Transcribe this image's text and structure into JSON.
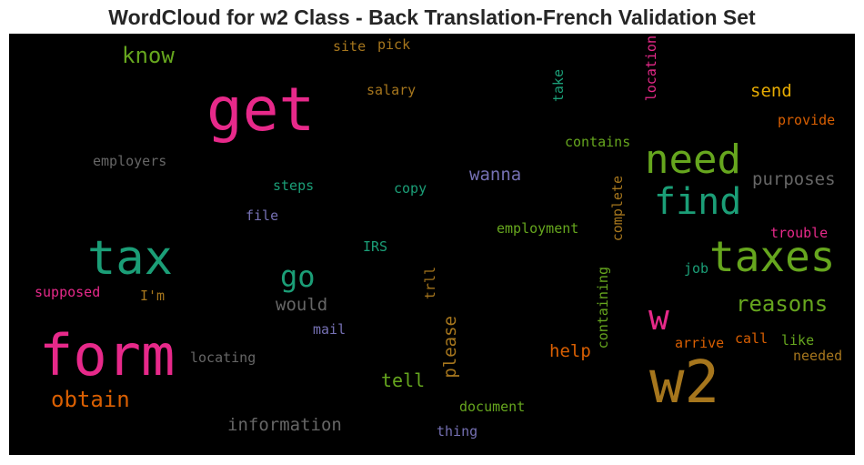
{
  "title": "WordCloud for w2 Class - Back Translation-French Validation Set",
  "words": [
    {
      "text": "get",
      "color": "#e7298a"
    },
    {
      "text": "form",
      "color": "#e7298a"
    },
    {
      "text": "w2",
      "color": "#a6761d"
    },
    {
      "text": "tax",
      "color": "#1b9e77"
    },
    {
      "text": "taxes",
      "color": "#66a61e"
    },
    {
      "text": "need",
      "color": "#66a61e"
    },
    {
      "text": "find",
      "color": "#1b9e77"
    },
    {
      "text": "w",
      "color": "#e7298a"
    },
    {
      "text": "go",
      "color": "#1b9e77"
    },
    {
      "text": "reasons",
      "color": "#66a61e"
    },
    {
      "text": "obtain",
      "color": "#d95f02"
    },
    {
      "text": "know",
      "color": "#66a61e"
    },
    {
      "text": "information",
      "color": "#666666"
    },
    {
      "text": "purposes",
      "color": "#666666"
    },
    {
      "text": "would",
      "color": "#666666"
    },
    {
      "text": "send",
      "color": "#e6ab02"
    },
    {
      "text": "tell",
      "color": "#66a61e"
    },
    {
      "text": "help",
      "color": "#d95f02"
    },
    {
      "text": "wanna",
      "color": "#7570b3"
    },
    {
      "text": "please",
      "color": "#a6761d"
    },
    {
      "text": "salary",
      "color": "#a6761d"
    },
    {
      "text": "contains",
      "color": "#66a61e"
    },
    {
      "text": "employers",
      "color": "#666666"
    },
    {
      "text": "locating",
      "color": "#666666"
    },
    {
      "text": "provide",
      "color": "#d95f02"
    },
    {
      "text": "employment",
      "color": "#66a61e"
    },
    {
      "text": "document",
      "color": "#66a61e"
    },
    {
      "text": "supposed",
      "color": "#e7298a"
    },
    {
      "text": "steps",
      "color": "#1b9e77"
    },
    {
      "text": "copy",
      "color": "#1b9e77"
    },
    {
      "text": "file",
      "color": "#7570b3"
    },
    {
      "text": "IRS",
      "color": "#1b9e77"
    },
    {
      "text": "mail",
      "color": "#7570b3"
    },
    {
      "text": "thing",
      "color": "#7570b3"
    },
    {
      "text": "site",
      "color": "#a6761d"
    },
    {
      "text": "pick",
      "color": "#a6761d"
    },
    {
      "text": "I'm",
      "color": "#a6761d"
    },
    {
      "text": "trouble",
      "color": "#e7298a"
    },
    {
      "text": "job",
      "color": "#1b9e77"
    },
    {
      "text": "arrive",
      "color": "#d95f02"
    },
    {
      "text": "call",
      "color": "#d95f02"
    },
    {
      "text": "like",
      "color": "#66a61e"
    },
    {
      "text": "needed",
      "color": "#a6761d"
    },
    {
      "text": "location",
      "color": "#e7298a"
    },
    {
      "text": "take",
      "color": "#1b9e77"
    },
    {
      "text": "complete",
      "color": "#a6761d"
    },
    {
      "text": "containing",
      "color": "#66a61e"
    },
    {
      "text": "trll",
      "color": "#a6761d"
    }
  ]
}
